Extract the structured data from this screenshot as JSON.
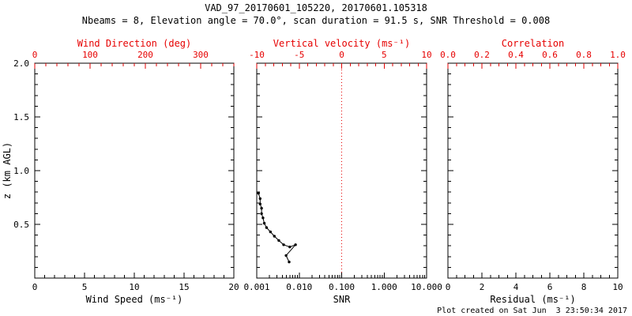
{
  "header": {
    "title": "VAD_97_20170601_105220, 20170601.105318",
    "subtitle": "Nbeams = 8, Elevation angle = 70.0°, scan duration = 91.5 s, SNR Threshold = 0.008"
  },
  "footer": {
    "created": "Plot created on Sat Jun  3 23:50:34 2017"
  },
  "colors": {
    "axis_red": "#e60000",
    "frame": "#000000",
    "series": "#000000",
    "background": "#ffffff"
  },
  "chart_data": [
    {
      "type": "line",
      "name": "wind",
      "x_bottom": {
        "label": "Wind Speed (ms⁻¹)",
        "min": 0,
        "max": 20,
        "scale": "linear",
        "ticks": [
          0,
          5,
          10,
          15,
          20
        ],
        "tick_labels": [
          "0",
          "5",
          "10",
          "15",
          "20"
        ],
        "minor_divisions": 5
      },
      "x_top": {
        "label": "Wind Direction (deg)",
        "min": 0,
        "max": 360,
        "scale": "linear",
        "ticks": [
          0,
          100,
          200,
          300
        ],
        "tick_labels": [
          "0",
          "100",
          "200",
          "300"
        ],
        "minor_divisions": 5
      },
      "y": {
        "label": "z (km AGL)",
        "min": 0,
        "max": 2,
        "ticks": [
          0,
          0.5,
          1,
          1.5,
          2
        ],
        "tick_labels": [
          "",
          "0.5",
          "1.0",
          "1.5",
          "2.0"
        ],
        "show_labels": true,
        "minor_divisions": 5
      },
      "series": []
    },
    {
      "type": "line",
      "name": "snr",
      "x_bottom": {
        "label": "SNR",
        "min": 0.001,
        "max": 10,
        "scale": "log",
        "ticks": [
          0.001,
          0.01,
          0.1,
          1,
          10
        ],
        "tick_labels": [
          "0.001",
          "0.010",
          "0.100",
          "1.000",
          "10.000"
        ]
      },
      "x_top": {
        "label": "Vertical velocity (ms⁻¹)",
        "min": -10,
        "max": 10,
        "scale": "linear",
        "ticks": [
          -10,
          -5,
          0,
          5,
          10
        ],
        "tick_labels": [
          "-10",
          "-5",
          "0",
          "5",
          "10"
        ],
        "minor_divisions": 5
      },
      "y": {
        "label": "",
        "min": 0,
        "max": 2,
        "ticks": [
          0,
          0.5,
          1,
          1.5,
          2
        ],
        "tick_labels": [
          "",
          "",
          "",
          "",
          ""
        ],
        "show_labels": false,
        "minor_divisions": 5
      },
      "refline": {
        "value": 0,
        "axis": "top",
        "style": "dotted",
        "color": "#e60000"
      },
      "series": [
        {
          "name": "snr-profile",
          "color": "#000000",
          "marker": "circle",
          "points": [
            [
              0.0011,
              0.79
            ],
            [
              0.0012,
              0.74
            ],
            [
              0.0012,
              0.69
            ],
            [
              0.0013,
              0.65
            ],
            [
              0.0013,
              0.6
            ],
            [
              0.0014,
              0.56
            ],
            [
              0.0015,
              0.51
            ],
            [
              0.0017,
              0.47
            ],
            [
              0.0021,
              0.43
            ],
            [
              0.0026,
              0.39
            ],
            [
              0.0033,
              0.35
            ],
            [
              0.0043,
              0.31
            ],
            [
              0.006,
              0.29
            ],
            [
              0.0082,
              0.31
            ],
            [
              0.0049,
              0.21
            ],
            [
              0.0058,
              0.15
            ]
          ]
        }
      ]
    },
    {
      "type": "line",
      "name": "residual",
      "x_bottom": {
        "label": "Residual (ms⁻¹)",
        "min": 0,
        "max": 10,
        "scale": "linear",
        "ticks": [
          0,
          2,
          4,
          6,
          8,
          10
        ],
        "tick_labels": [
          "0",
          "2",
          "4",
          "6",
          "8",
          "10"
        ],
        "minor_divisions": 4
      },
      "x_top": {
        "label": "Correlation",
        "min": 0,
        "max": 1,
        "scale": "linear",
        "ticks": [
          0,
          0.2,
          0.4,
          0.6,
          0.8,
          1
        ],
        "tick_labels": [
          "0.0",
          "0.2",
          "0.4",
          "0.6",
          "0.8",
          "1.0"
        ],
        "minor_divisions": 4
      },
      "y": {
        "label": "",
        "min": 0,
        "max": 2,
        "ticks": [
          0,
          0.5,
          1,
          1.5,
          2
        ],
        "tick_labels": [
          "",
          "",
          "",
          "",
          ""
        ],
        "show_labels": false,
        "minor_divisions": 5
      },
      "series": []
    }
  ]
}
